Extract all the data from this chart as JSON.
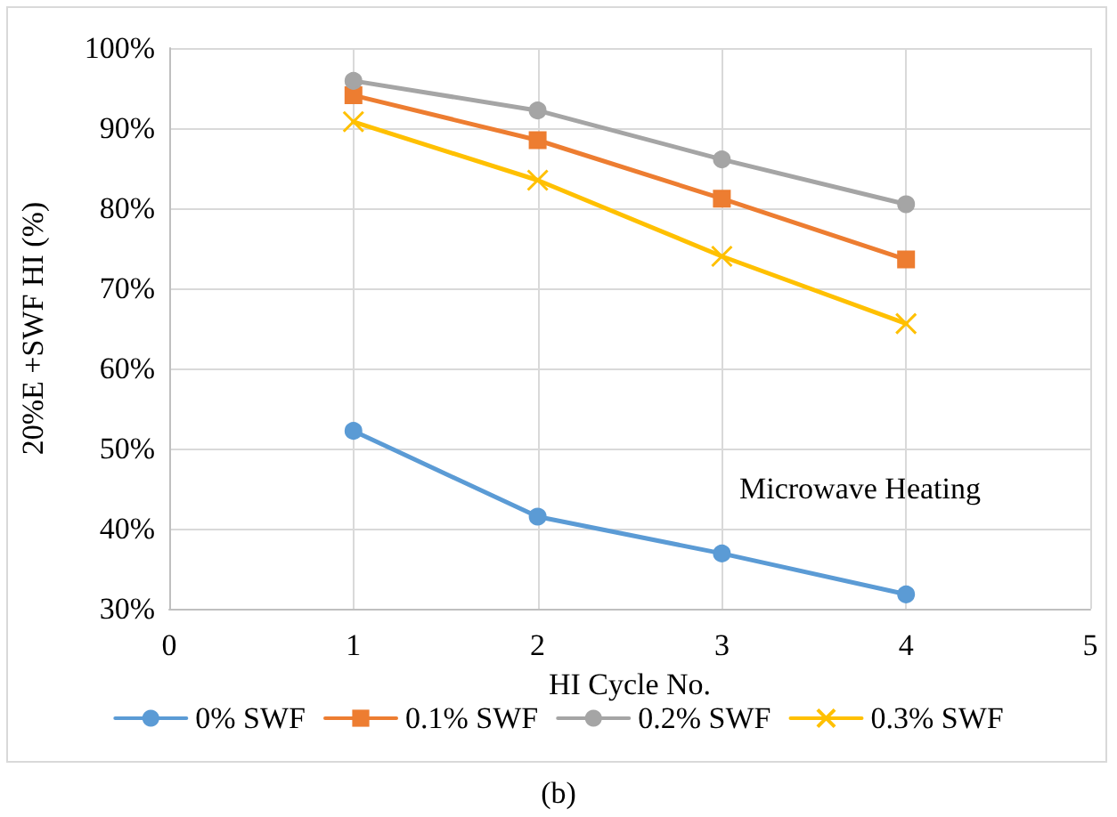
{
  "chart_data": {
    "type": "line",
    "xlabel": "HI Cycle No.",
    "ylabel": "20%E +SWF HI (%)",
    "annotations": [
      "Microwave Heating",
      "(b)"
    ],
    "x": [
      1,
      2,
      3,
      4
    ],
    "series": [
      {
        "name": "0% SWF",
        "color": "#5b9bd5",
        "marker": "circle",
        "values": [
          52.2,
          41.5,
          36.9,
          31.8
        ]
      },
      {
        "name": "0.1% SWF",
        "color": "#ed7d31",
        "marker": "square",
        "values": [
          94.1,
          88.5,
          81.2,
          73.6
        ]
      },
      {
        "name": "0.2% SWF",
        "color": "#a5a5a5",
        "marker": "circle",
        "values": [
          95.9,
          92.2,
          86.1,
          80.5
        ]
      },
      {
        "name": "0.3% SWF",
        "color": "#ffc000",
        "marker": "cross",
        "values": [
          90.8,
          83.5,
          74.0,
          65.6
        ]
      }
    ],
    "xlim": [
      0,
      5
    ],
    "xticks": [
      0,
      1,
      2,
      3,
      4,
      5
    ],
    "ylim": [
      30,
      100
    ],
    "yticks": [
      {
        "value": 30,
        "label": "30%"
      },
      {
        "value": 40,
        "label": "40%"
      },
      {
        "value": 50,
        "label": "50%"
      },
      {
        "value": 60,
        "label": "60%"
      },
      {
        "value": 70,
        "label": "70%"
      },
      {
        "value": 80,
        "label": "80%"
      },
      {
        "value": 90,
        "label": "90%"
      },
      {
        "value": 100,
        "label": "100%"
      }
    ],
    "grid": true,
    "legend": "bottom",
    "line_style": "solid"
  }
}
